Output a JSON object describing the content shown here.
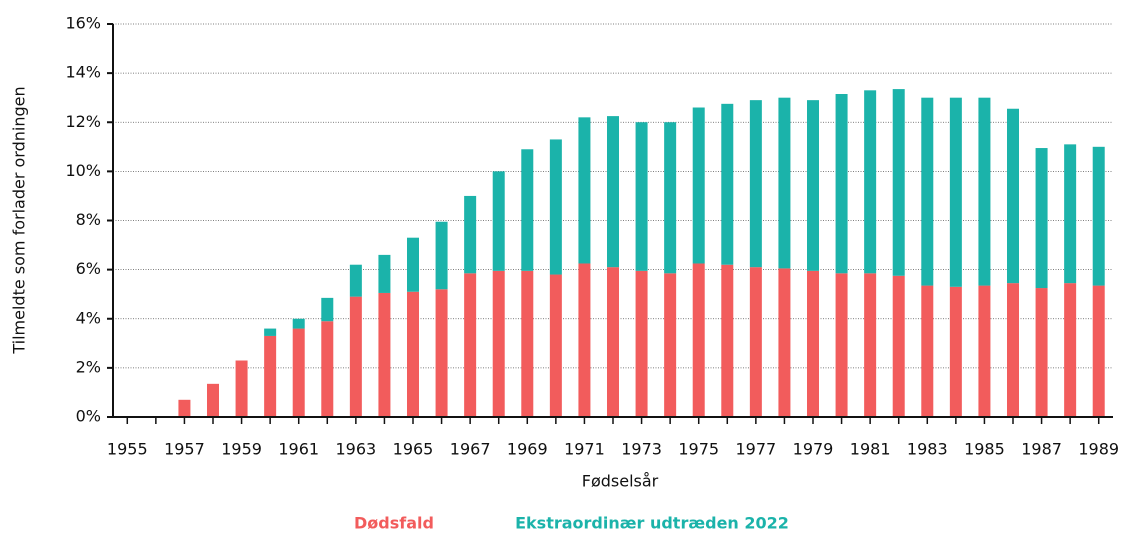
{
  "chart_data": {
    "type": "stacked-bar",
    "x_label": "Fødselsår",
    "y_label": "Tilmeldte som forlader ordningen",
    "categories": [
      "1955",
      null,
      "1957",
      null,
      "1959",
      null,
      "1961",
      null,
      "1963",
      null,
      "1965",
      null,
      "1967",
      null,
      "1969",
      null,
      "1971",
      null,
      "1973",
      null,
      "1975",
      null,
      "1977",
      null,
      "1979",
      null,
      "1981",
      null,
      "1983",
      null,
      "1985",
      null,
      "1987",
      null,
      "1989"
    ],
    "series": [
      {
        "name": "Dødsfald",
        "color": "#f25c5c",
        "values": [
          0,
          0,
          0.7,
          1.35,
          2.3,
          3.3,
          3.6,
          3.9,
          4.9,
          5.05,
          5.1,
          5.2,
          5.85,
          5.95,
          5.95,
          5.8,
          6.25,
          6.1,
          5.95,
          5.85,
          6.25,
          6.2,
          6.1,
          6.05,
          5.95,
          5.85,
          5.85,
          5.75,
          5.35,
          5.3,
          5.35,
          5.45,
          5.25,
          5.45,
          5.35
        ]
      },
      {
        "name": "Ekstraordinær udtræden 2022",
        "color": "#1bb3aa",
        "values": [
          0,
          0,
          0,
          0,
          0,
          0.3,
          0.4,
          0.95,
          1.3,
          1.55,
          2.2,
          2.75,
          3.15,
          4.05,
          4.95,
          5.5,
          5.95,
          6.15,
          6.05,
          6.15,
          6.35,
          6.55,
          6.8,
          6.95,
          6.95,
          7.3,
          7.45,
          7.6,
          7.65,
          7.7,
          7.65,
          7.1,
          5.7,
          5.65,
          5.65
        ]
      }
    ],
    "ylim": [
      0,
      16
    ],
    "yticks": [
      {
        "value": 0,
        "label": "0%"
      },
      {
        "value": 2,
        "label": "2%"
      },
      {
        "value": 4,
        "label": "4%"
      },
      {
        "value": 6,
        "label": "6%"
      },
      {
        "value": 8,
        "label": "8%"
      },
      {
        "value": 10,
        "label": "10%"
      },
      {
        "value": 12,
        "label": "12%"
      },
      {
        "value": 14,
        "label": "14%"
      },
      {
        "value": 16,
        "label": "16%"
      }
    ],
    "grid": true,
    "legend": "bottom"
  }
}
